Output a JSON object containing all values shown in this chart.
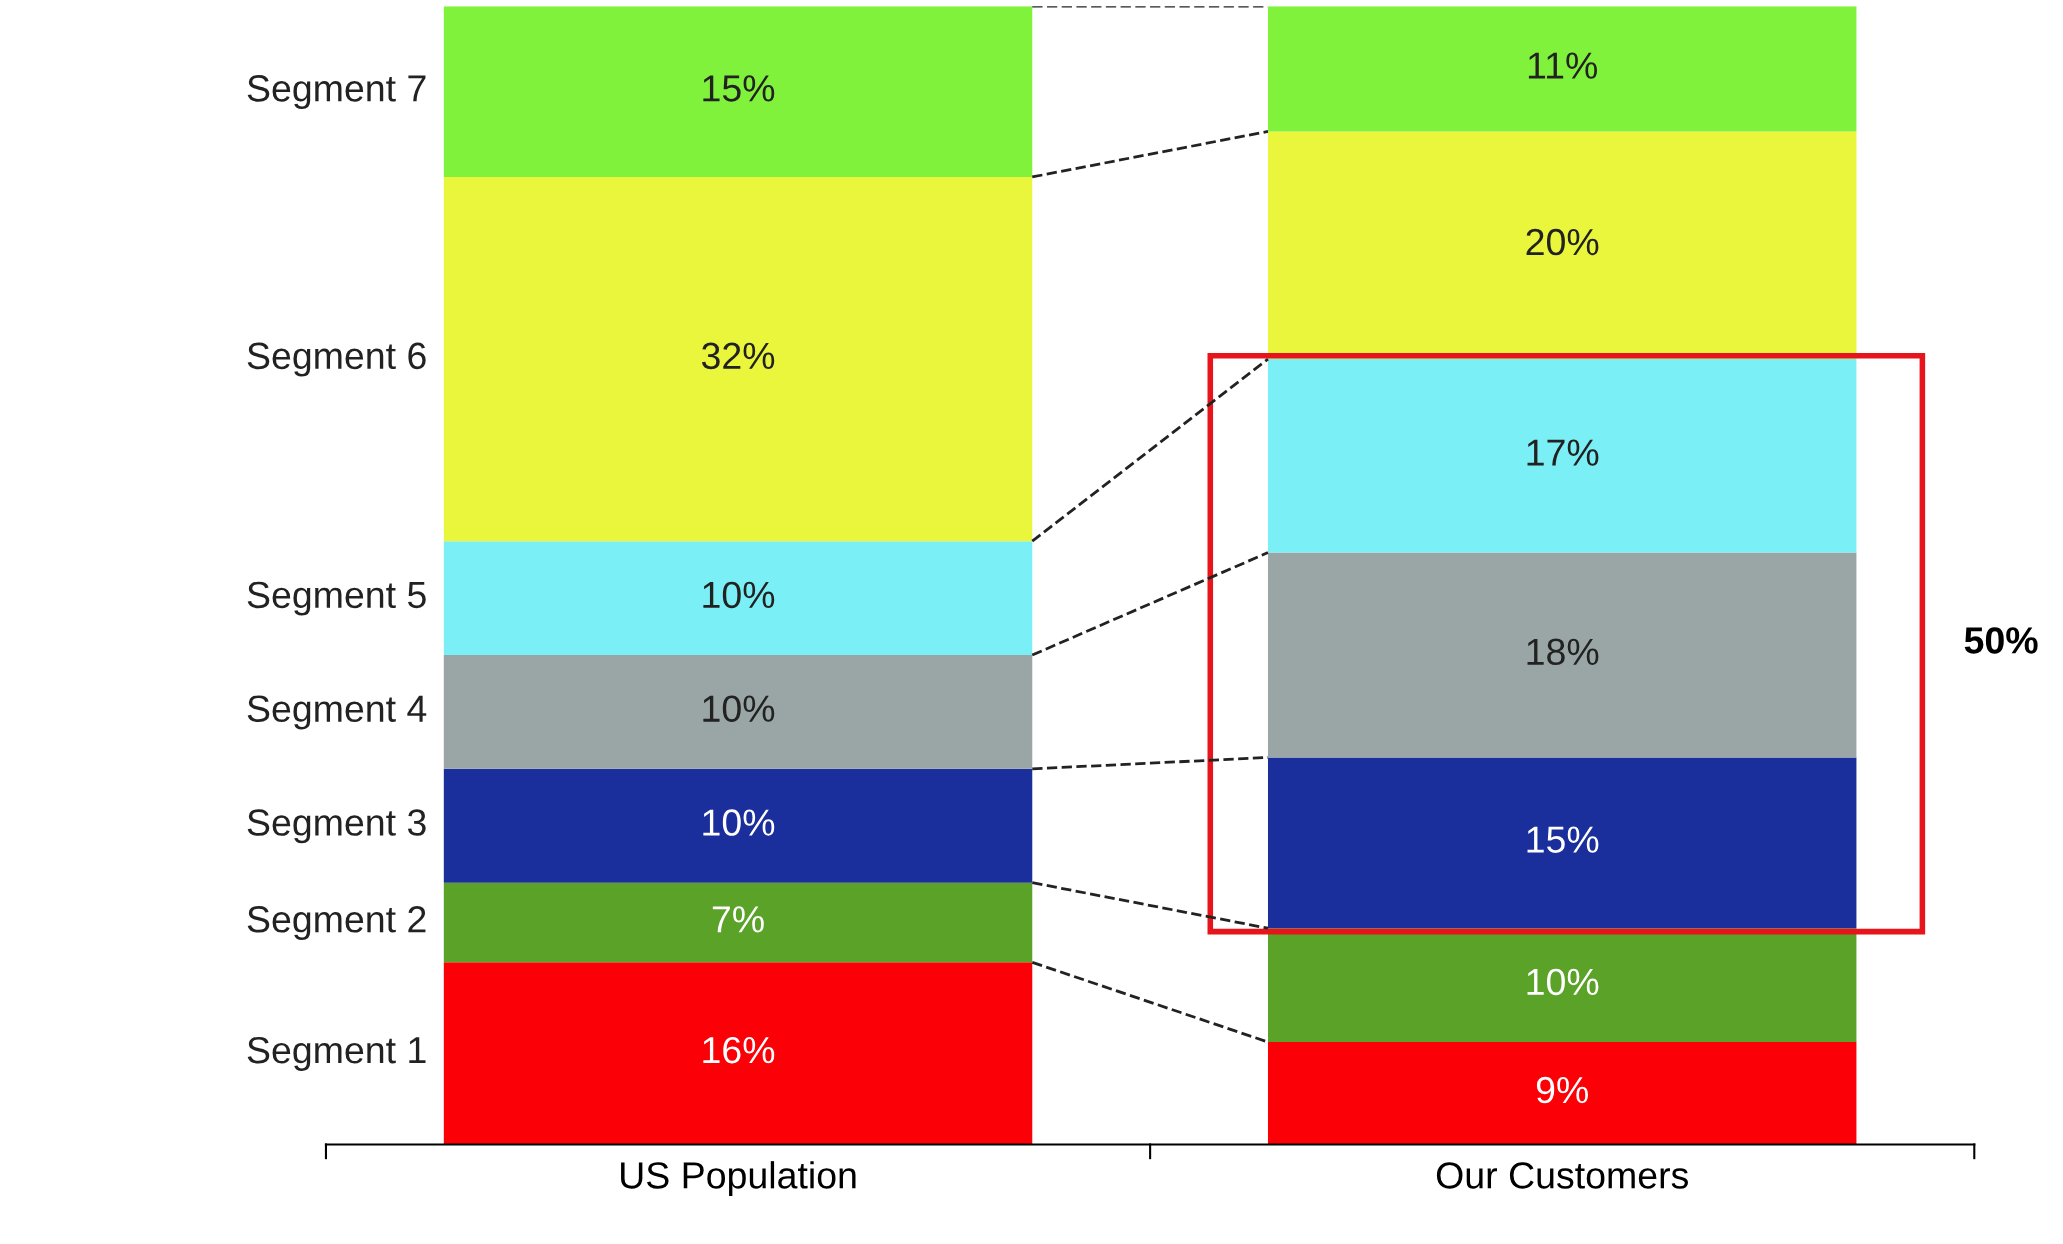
{
  "chart_data": {
    "type": "bar",
    "stacked": true,
    "categories": [
      "US Population",
      "Our Customers"
    ],
    "series": [
      {
        "name": "Segment 1",
        "color": "#fb0006",
        "values": [
          16,
          9
        ],
        "value_labels": [
          "16%",
          "9%"
        ]
      },
      {
        "name": "Segment 2",
        "color": "#5ba229",
        "values": [
          7,
          10
        ],
        "value_labels": [
          "7%",
          "10%"
        ]
      },
      {
        "name": "Segment 3",
        "color": "#1b2f9c",
        "values": [
          10,
          15
        ],
        "value_labels": [
          "10%",
          "15%"
        ]
      },
      {
        "name": "Segment 4",
        "color": "#9aa6a5",
        "values": [
          10,
          18
        ],
        "value_labels": [
          "10%",
          "18%"
        ]
      },
      {
        "name": "Segment 5",
        "color": "#7beff6",
        "values": [
          10,
          17
        ],
        "value_labels": [
          "10%",
          "17%"
        ]
      },
      {
        "name": "Segment 6",
        "color": "#eaf63b",
        "values": [
          32,
          20
        ],
        "value_labels": [
          "32%",
          "20%"
        ]
      },
      {
        "name": "Segment 7",
        "color": "#80f23c",
        "values": [
          15,
          11
        ],
        "value_labels": [
          "15%",
          "11%"
        ]
      }
    ],
    "annotations": [
      "50%"
    ],
    "grid": false,
    "legend": false
  }
}
